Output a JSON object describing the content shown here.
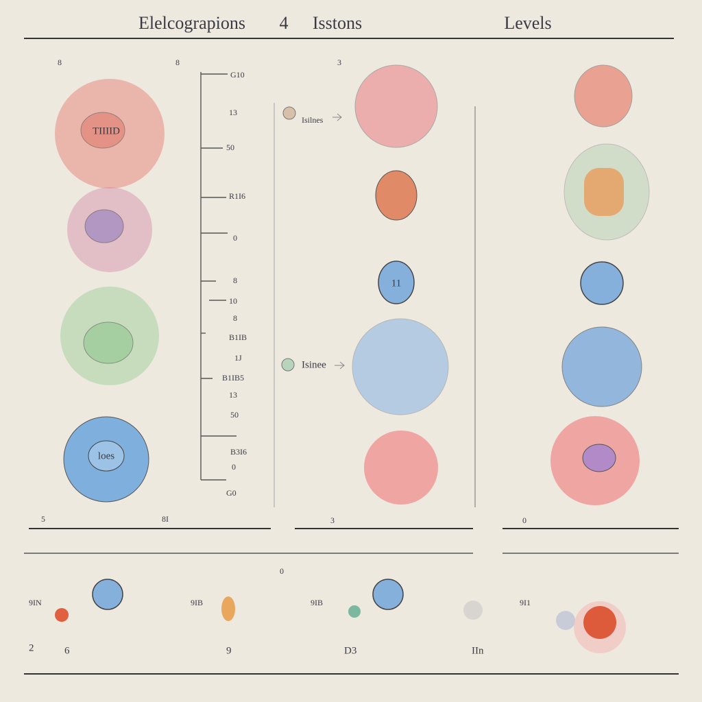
{
  "header": {
    "title": "Elelcograpions",
    "mark": "4",
    "subtitle": "Isstons",
    "levels": "Levels"
  },
  "left": {
    "corner_left": "8",
    "corner_right": "8",
    "blob_labels": [
      "TIIIID",
      "loes"
    ],
    "footer_left": "5",
    "footer_right": "8I"
  },
  "scale": {
    "ticks": [
      "G10",
      "13",
      "50",
      "R1I6",
      "0",
      "8",
      "10",
      "8",
      "B1IB",
      "1J",
      "B1IB5",
      "13",
      "50",
      "B3I6",
      "0",
      "G0"
    ]
  },
  "middle": {
    "corner": "3",
    "arrow_labels": [
      "Isilnes",
      "Isinee"
    ],
    "circle_label": "11",
    "footer": "3"
  },
  "right": {
    "footer": "0"
  },
  "bottom": {
    "top_label": "0",
    "labels": [
      "2",
      "6",
      "9",
      "D3",
      "IIn"
    ],
    "node_labels": [
      "9IN",
      "9IB",
      "9IB",
      "9I1"
    ]
  }
}
